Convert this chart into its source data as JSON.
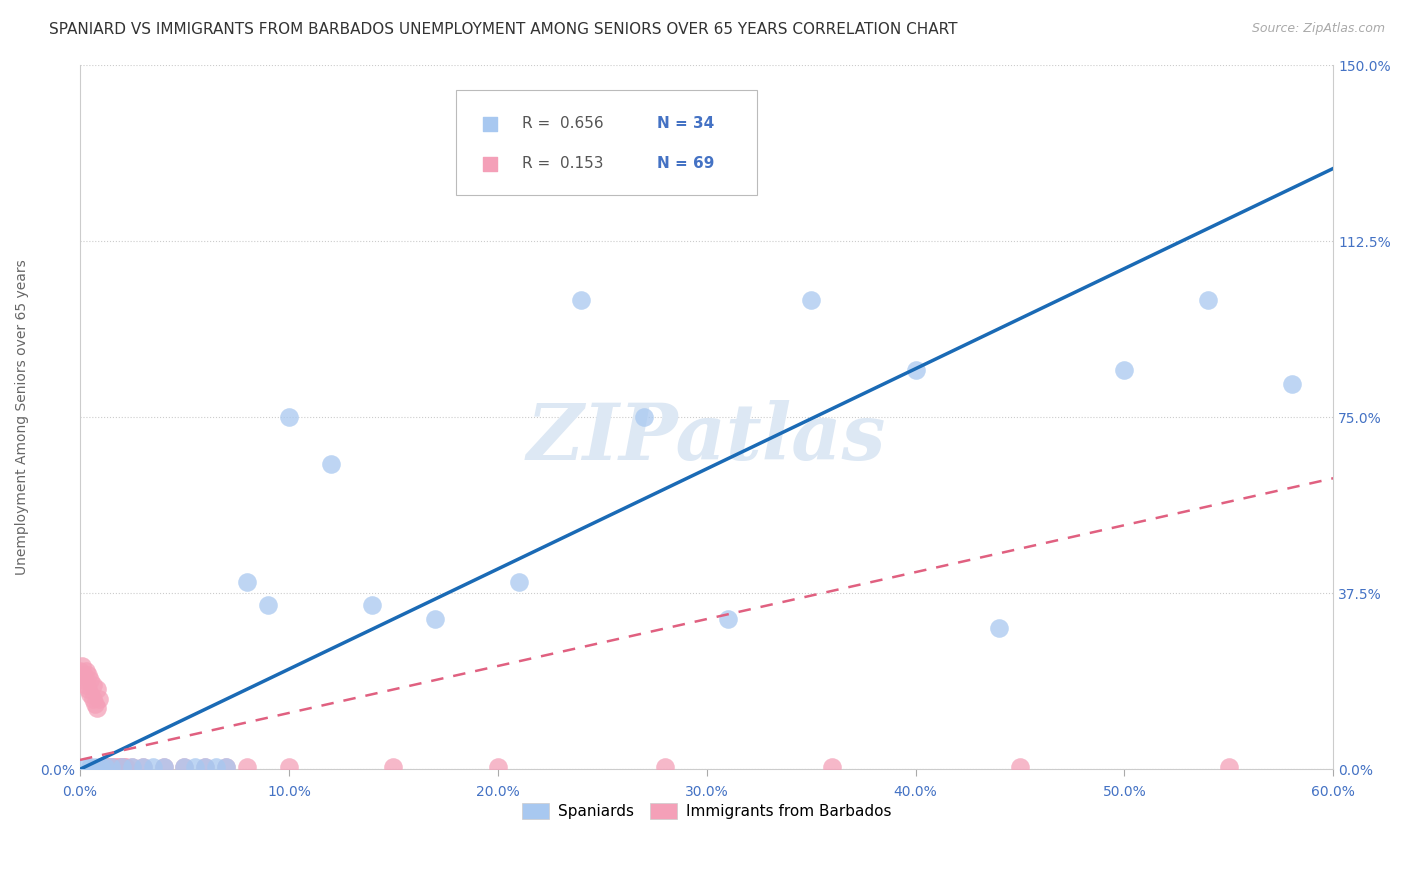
{
  "title": "SPANIARD VS IMMIGRANTS FROM BARBADOS UNEMPLOYMENT AMONG SENIORS OVER 65 YEARS CORRELATION CHART",
  "source": "Source: ZipAtlas.com",
  "ylabel": "Unemployment Among Seniors over 65 years",
  "xlim": [
    0.0,
    0.6
  ],
  "ylim": [
    0.0,
    1.5
  ],
  "xticks": [
    0.0,
    0.1,
    0.2,
    0.3,
    0.4,
    0.5,
    0.6
  ],
  "yticks": [
    0.0,
    0.375,
    0.75,
    1.125,
    1.5
  ],
  "ytick_labels": [
    "0.0%",
    "37.5%",
    "75.0%",
    "112.5%",
    "150.0%"
  ],
  "xtick_labels": [
    "0.0%",
    "10.0%",
    "20.0%",
    "30.0%",
    "40.0%",
    "50.0%",
    "60.0%"
  ],
  "spaniards_x": [
    0.003,
    0.005,
    0.007,
    0.01,
    0.012,
    0.015,
    0.02,
    0.025,
    0.03,
    0.035,
    0.04,
    0.05,
    0.055,
    0.06,
    0.065,
    0.07,
    0.08,
    0.09,
    0.1,
    0.12,
    0.14,
    0.17,
    0.21,
    0.24,
    0.27,
    0.31,
    0.35,
    0.4,
    0.44,
    0.5,
    0.54,
    0.58
  ],
  "spaniards_y": [
    0.005,
    0.005,
    0.005,
    0.005,
    0.005,
    0.005,
    0.005,
    0.005,
    0.005,
    0.005,
    0.005,
    0.005,
    0.005,
    0.005,
    0.005,
    0.005,
    0.4,
    0.35,
    0.75,
    0.65,
    0.35,
    0.32,
    0.4,
    1.0,
    0.75,
    0.32,
    1.0,
    0.85,
    0.3,
    0.85,
    1.0,
    0.82
  ],
  "barbados_x": [
    0.0,
    0.001,
    0.002,
    0.002,
    0.003,
    0.003,
    0.004,
    0.004,
    0.005,
    0.005,
    0.006,
    0.006,
    0.007,
    0.008,
    0.008,
    0.009,
    0.01,
    0.01,
    0.011,
    0.012,
    0.013,
    0.014,
    0.015,
    0.016,
    0.017,
    0.018,
    0.019,
    0.02,
    0.021,
    0.022,
    0.025,
    0.03,
    0.04,
    0.05,
    0.06,
    0.07,
    0.08,
    0.1,
    0.15,
    0.2,
    0.28,
    0.36,
    0.45,
    0.55
  ],
  "barbados_y": [
    0.21,
    0.22,
    0.2,
    0.19,
    0.21,
    0.18,
    0.2,
    0.17,
    0.19,
    0.16,
    0.15,
    0.18,
    0.14,
    0.17,
    0.13,
    0.15,
    0.005,
    0.005,
    0.005,
    0.005,
    0.005,
    0.005,
    0.005,
    0.005,
    0.005,
    0.005,
    0.005,
    0.005,
    0.005,
    0.005,
    0.005,
    0.005,
    0.005,
    0.005,
    0.005,
    0.005,
    0.005,
    0.005,
    0.005,
    0.005,
    0.005,
    0.005,
    0.005,
    0.005
  ],
  "spaniards_color": "#a8c8f0",
  "barbados_color": "#f4a0b8",
  "spaniards_line_color": "#1a6ab5",
  "barbados_line_color": "#e06080",
  "sp_line_x0": 0.0,
  "sp_line_y0": 0.0,
  "sp_line_x1": 0.6,
  "sp_line_y1": 1.28,
  "bar_line_x0": 0.0,
  "bar_line_y0": 0.02,
  "bar_line_x1": 0.6,
  "bar_line_y1": 0.62,
  "legend_R_spaniards": "0.656",
  "legend_N_spaniards": "34",
  "legend_R_barbados": "0.153",
  "legend_N_barbados": "69",
  "watermark": "ZIPatlas",
  "background_color": "#ffffff",
  "grid_color": "#cccccc",
  "title_fontsize": 11,
  "axis_label_fontsize": 10,
  "tick_fontsize": 10,
  "right_tick_color": "#4472c4"
}
